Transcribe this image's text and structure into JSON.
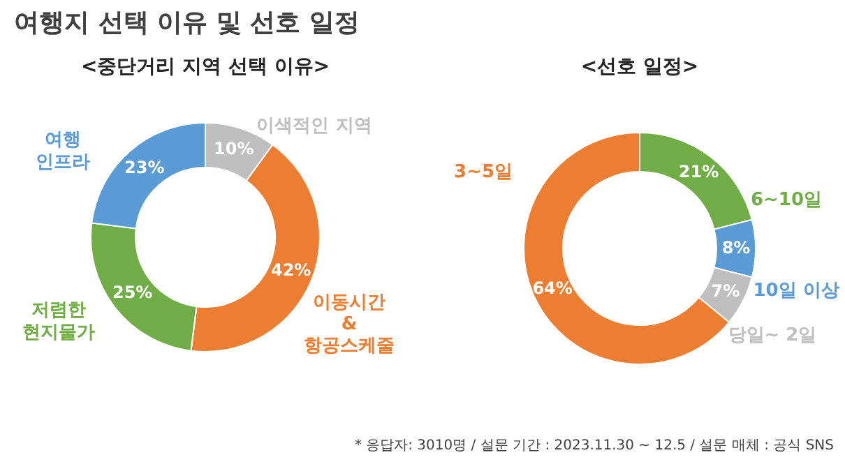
{
  "chart_data": [
    {
      "type": "donut",
      "title": "여행지 선택 이유 및 선호 일정",
      "subtitle": "<중단거리 지역 선택 이유>",
      "categories": [
        "이색적인 지역",
        "이동시간\n&\n항공스케줄",
        "저렴한\n현지물가",
        "여행\n인프라"
      ],
      "values": [
        10,
        42,
        25,
        23
      ],
      "value_labels": [
        "10%",
        "42%",
        "25%",
        "23%"
      ],
      "colors": [
        "#bfbfbf",
        "#ed7d31",
        "#70ad47",
        "#5b9bd5"
      ]
    },
    {
      "type": "donut",
      "subtitle": "<선호 일정>",
      "categories": [
        "6~10일",
        "10일 이상",
        "당일~ 2일",
        "3~5일"
      ],
      "values": [
        21,
        8,
        7,
        64
      ],
      "value_labels": [
        "21%",
        "8%",
        "7%",
        "64%"
      ],
      "colors": [
        "#70ad47",
        "#5b9bd5",
        "#bfbfbf",
        "#ed7d31"
      ],
      "annotations": [
        "* 응답자: 3010명 / 설문 기간 : 2023.11.30 ~ 12.5 / 설문 매체 : 공식 SNS"
      ]
    }
  ]
}
